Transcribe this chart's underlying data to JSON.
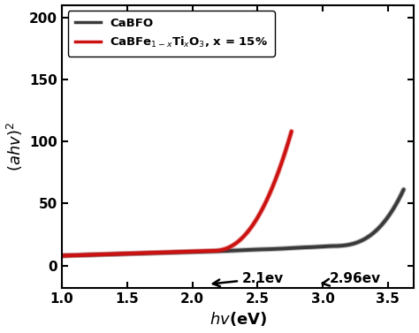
{
  "xlabel": "$hv$(eV)",
  "ylabel": "$(ahv)^2$",
  "xlim": [
    1.0,
    3.7
  ],
  "ylim": [
    -18,
    210
  ],
  "xticks": [
    1.0,
    1.5,
    2.0,
    2.5,
    3.0,
    3.5
  ],
  "yticks": [
    0,
    50,
    100,
    150,
    200
  ],
  "legend1": "CaBFO",
  "legend2": "CaBFe$_{1-x}$Ti$_x$O$_3$, x = 15%",
  "color_dark": "#3a3a3a",
  "color_red": "#cc1111",
  "annotation1_text": "2.1ev",
  "annotation2_text": "2.96ev"
}
